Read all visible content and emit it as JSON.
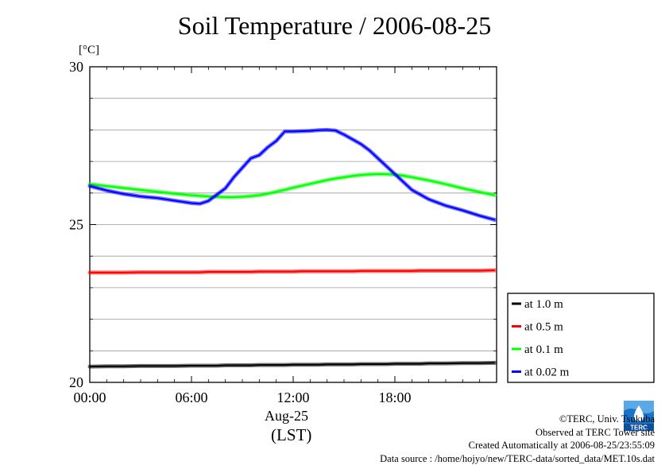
{
  "chart_data": {
    "type": "line",
    "title": "Soil Temperature / 2006-08-25",
    "ylabel": "[°C]",
    "xlabel": "",
    "x_date_label": "Aug-25",
    "x_tz_label": "(LST)",
    "xlim": [
      0,
      24
    ],
    "ylim": [
      20,
      30
    ],
    "x_ticks": [
      0,
      6,
      12,
      18
    ],
    "x_tick_labels": [
      "00:00",
      "06:00",
      "12:00",
      "18:00"
    ],
    "y_ticks": [
      20,
      25,
      30
    ],
    "y_tick_labels": [
      "20",
      "25",
      "30"
    ],
    "grid": true,
    "legend_position": "right",
    "x": [
      0,
      1,
      2,
      3,
      4,
      5,
      6,
      6.5,
      7,
      7.5,
      8,
      8.5,
      9,
      9.5,
      10,
      10.5,
      11,
      11.5,
      12,
      12.5,
      13,
      13.5,
      14,
      14.5,
      15,
      15.5,
      16,
      16.5,
      17,
      17.5,
      18,
      18.5,
      19,
      19.5,
      20,
      21,
      22,
      23,
      23.9
    ],
    "series": [
      {
        "name": "at 1.0 m",
        "color": "#000000",
        "values": [
          20.5,
          20.51,
          20.51,
          20.52,
          20.52,
          20.52,
          20.53,
          20.53,
          20.53,
          20.53,
          20.54,
          20.54,
          20.54,
          20.54,
          20.55,
          20.55,
          20.55,
          20.55,
          20.56,
          20.56,
          20.56,
          20.56,
          20.57,
          20.57,
          20.57,
          20.57,
          20.58,
          20.58,
          20.58,
          20.58,
          20.59,
          20.59,
          20.59,
          20.59,
          20.6,
          20.6,
          20.61,
          20.61,
          20.62
        ]
      },
      {
        "name": "at 0.5 m",
        "color": "#ff0000",
        "values": [
          23.48,
          23.48,
          23.48,
          23.49,
          23.49,
          23.49,
          23.49,
          23.49,
          23.5,
          23.5,
          23.5,
          23.5,
          23.5,
          23.5,
          23.51,
          23.51,
          23.51,
          23.51,
          23.51,
          23.52,
          23.52,
          23.52,
          23.52,
          23.52,
          23.52,
          23.52,
          23.53,
          23.53,
          23.53,
          23.53,
          23.53,
          23.53,
          23.53,
          23.54,
          23.54,
          23.54,
          23.54,
          23.54,
          23.55
        ]
      },
      {
        "name": "at 0.1 m",
        "color": "#00ff00",
        "values": [
          26.28,
          26.22,
          26.16,
          26.1,
          26.04,
          25.98,
          25.93,
          25.91,
          25.89,
          25.88,
          25.87,
          25.87,
          25.88,
          25.9,
          25.93,
          25.98,
          26.04,
          26.1,
          26.17,
          26.23,
          26.29,
          26.35,
          26.41,
          26.46,
          26.5,
          26.54,
          26.57,
          26.59,
          26.6,
          26.6,
          26.58,
          26.55,
          26.5,
          26.45,
          26.4,
          26.28,
          26.15,
          26.03,
          25.93
        ]
      },
      {
        "name": "at 0.02 m",
        "color": "#0000ff",
        "values": [
          26.22,
          26.08,
          25.97,
          25.89,
          25.84,
          25.76,
          25.68,
          25.66,
          25.75,
          25.95,
          26.15,
          26.5,
          26.8,
          27.1,
          27.2,
          27.45,
          27.65,
          27.95,
          27.95,
          27.96,
          27.97,
          27.99,
          28.0,
          27.98,
          27.85,
          27.7,
          27.55,
          27.35,
          27.1,
          26.85,
          26.6,
          26.35,
          26.1,
          25.95,
          25.8,
          25.6,
          25.45,
          25.28,
          25.15
        ]
      }
    ]
  },
  "unit_label": "[°C]",
  "credits": {
    "copyright": "©TERC, Univ. Tsukuba",
    "observed": "Observed at TERC Tower site",
    "created": "Created Automatically at 2006-08-25/23:55:09",
    "source": "Data source : /home/hojyo/new/TERC-data/sorted_data/MET.10s.dat"
  },
  "logo_icon": "terc-logo-icon",
  "logo_text": "TERC"
}
